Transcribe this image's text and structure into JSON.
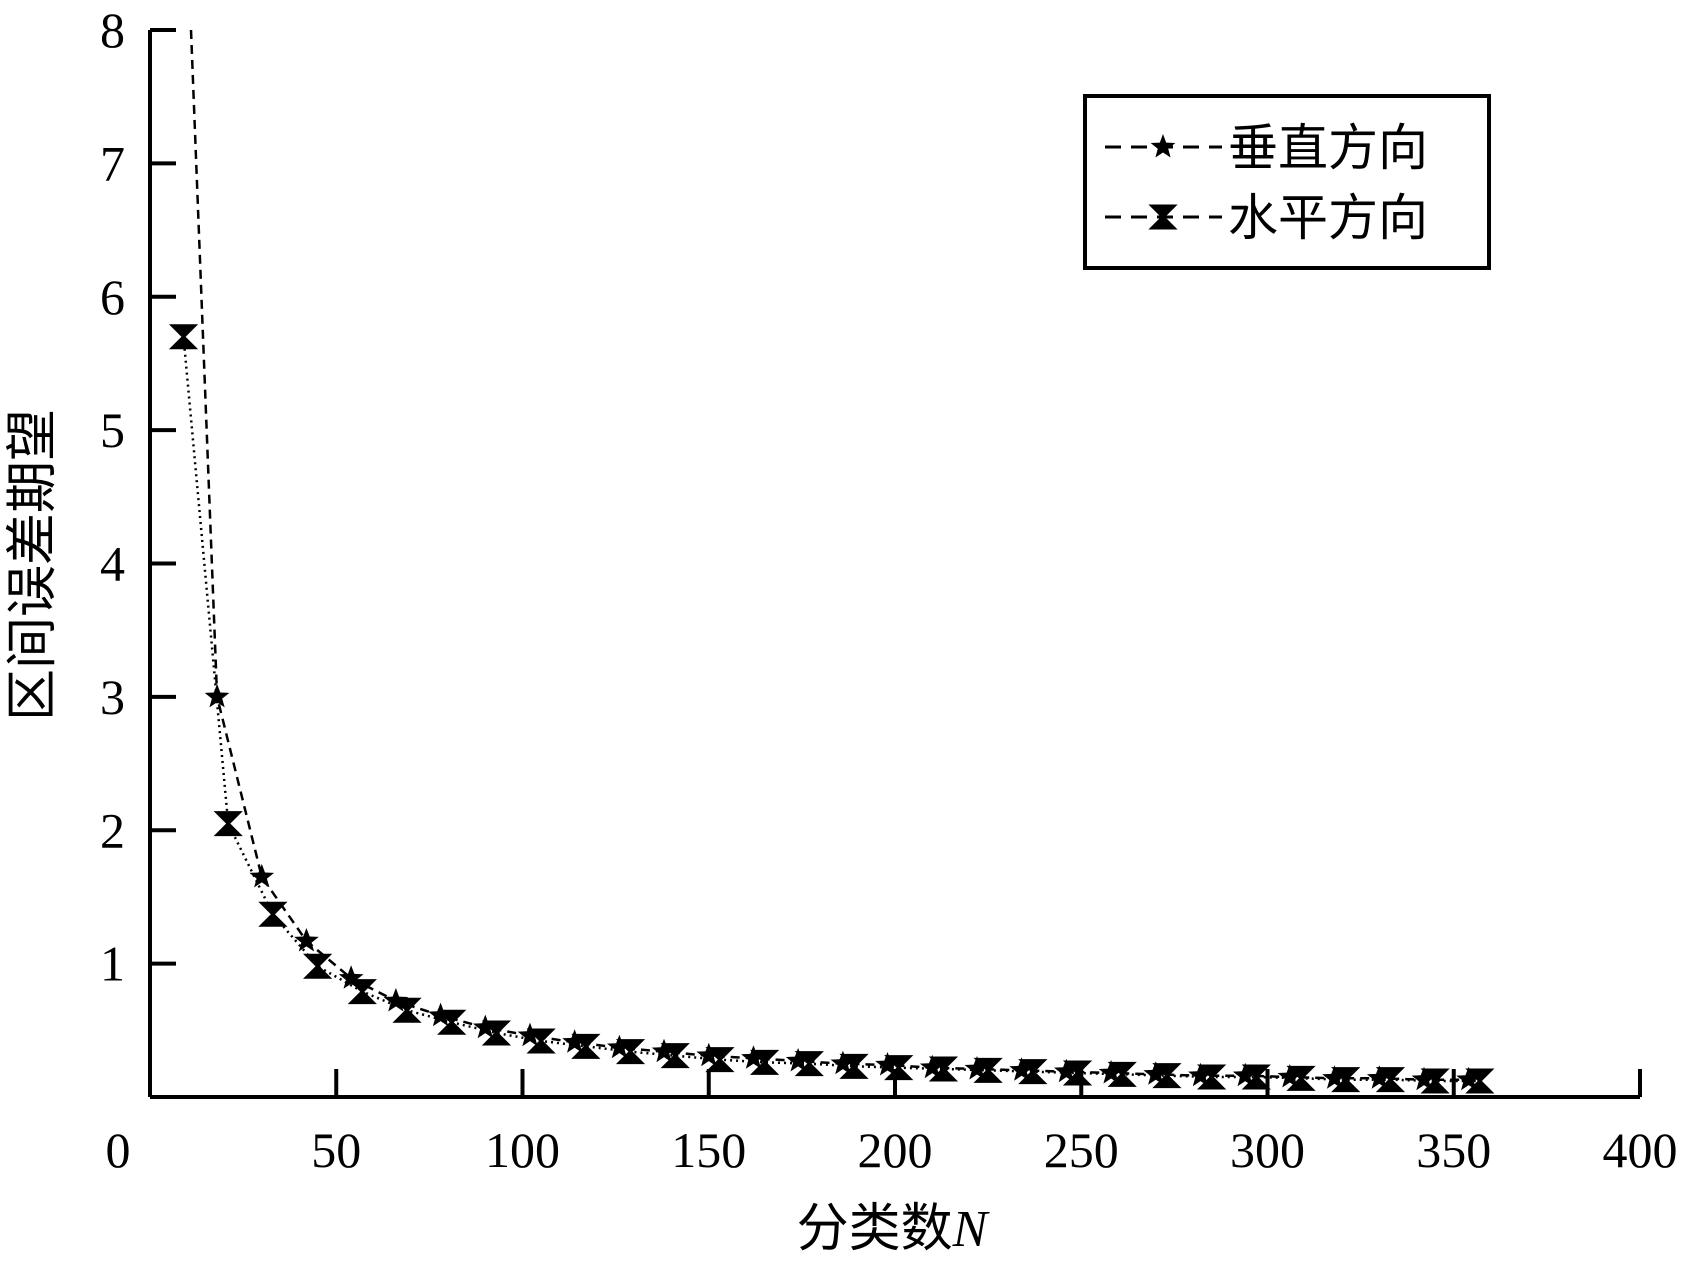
{
  "chart_data": {
    "type": "line",
    "title": "",
    "xlabel": "分类数",
    "xlabel_var": "N",
    "ylabel": "区间误差期望",
    "xlim": [
      0,
      400
    ],
    "ylim": [
      0,
      8
    ],
    "grid": false,
    "legend_position": "top-right",
    "x_ticks": [
      "0",
      "50",
      "100",
      "150",
      "200",
      "250",
      "300",
      "350",
      "400"
    ],
    "y_ticks": [
      "1",
      "2",
      "3",
      "4",
      "5",
      "6",
      "7",
      "8"
    ],
    "series": [
      {
        "name": "垂直方向",
        "marker": "star",
        "line_style": "dashed",
        "line_start": [
          11,
          8
        ],
        "x": [
          18,
          30,
          42,
          54,
          66,
          78,
          90,
          102,
          114,
          126,
          138,
          150,
          162,
          174,
          186,
          198,
          210,
          222,
          234,
          246,
          258,
          270,
          282,
          294,
          306,
          318,
          330,
          342,
          354
        ],
        "values": [
          3.0,
          1.65,
          1.17,
          0.89,
          0.72,
          0.61,
          0.52,
          0.46,
          0.41,
          0.37,
          0.34,
          0.31,
          0.29,
          0.27,
          0.25,
          0.24,
          0.22,
          0.21,
          0.2,
          0.19,
          0.18,
          0.17,
          0.16,
          0.16,
          0.15,
          0.14,
          0.14,
          0.13,
          0.13
        ]
      },
      {
        "name": "水平方向",
        "marker": "hourglass",
        "line_style": "dotted",
        "x": [
          9,
          21,
          33,
          45,
          57,
          69,
          81,
          93,
          105,
          117,
          129,
          141,
          153,
          165,
          177,
          189,
          201,
          213,
          225,
          237,
          249,
          261,
          273,
          285,
          297,
          309,
          321,
          333,
          345,
          357
        ],
        "values": [
          5.7,
          2.05,
          1.37,
          0.98,
          0.79,
          0.65,
          0.56,
          0.48,
          0.42,
          0.38,
          0.34,
          0.31,
          0.28,
          0.26,
          0.25,
          0.23,
          0.22,
          0.21,
          0.2,
          0.19,
          0.18,
          0.17,
          0.16,
          0.15,
          0.15,
          0.14,
          0.13,
          0.13,
          0.12,
          0.12
        ]
      }
    ]
  }
}
